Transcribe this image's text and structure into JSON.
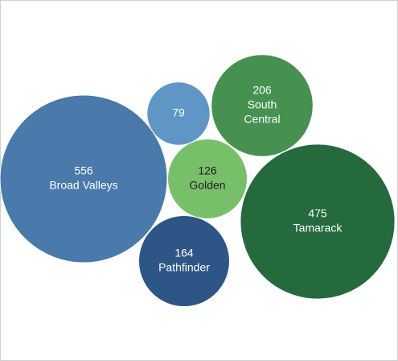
{
  "chart_data": {
    "type": "bubble",
    "legend": "none",
    "grid": false,
    "title": "",
    "points": [
      {
        "label": "Broad Valleys",
        "value": 556,
        "color": "#4a79ab",
        "text_color": "#ffffff",
        "value_text": "556",
        "label_text": "Broad Valleys"
      },
      {
        "label": "",
        "value": 79,
        "color": "#6096c5",
        "text_color": "#ffffff",
        "value_text": "79",
        "label_text": ""
      },
      {
        "label": "South Central",
        "value": 206,
        "color": "#469150",
        "text_color": "#ffffff",
        "value_text": "206",
        "label_text": "South Central"
      },
      {
        "label": "Golden",
        "value": 126,
        "color": "#78bf69",
        "text_color": "#1f1f1f",
        "value_text": "126",
        "label_text": "Golden"
      },
      {
        "label": "Tamarack",
        "value": 475,
        "color": "#256a3d",
        "text_color": "#ffffff",
        "value_text": "475",
        "label_text": "Tamarack"
      },
      {
        "label": "Pathfinder",
        "value": 164,
        "color": "#2d5687",
        "text_color": "#ffffff",
        "value_text": "164",
        "label_text": "Pathfinder"
      }
    ]
  }
}
